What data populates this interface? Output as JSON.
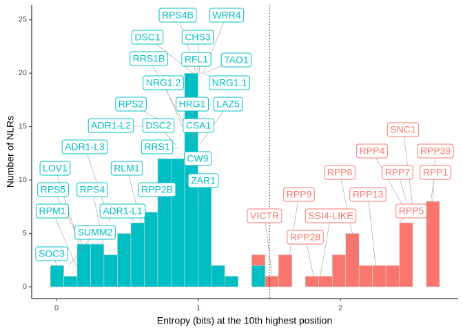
{
  "chart_data": {
    "type": "histogram",
    "x_label": "Entropy (bits) at the 10th highest position",
    "y_label": "Number of NLRs",
    "bins": [
      -0.044,
      0.051,
      0.145,
      0.24,
      0.334,
      0.429,
      0.524,
      0.618,
      0.713,
      0.807,
      0.902,
      0.997,
      1.091,
      1.186,
      1.28,
      1.375,
      1.47,
      1.564,
      1.659,
      1.753,
      1.848,
      1.943,
      2.037,
      2.132,
      2.226,
      2.321,
      2.416,
      2.51,
      2.605,
      2.699
    ],
    "stacked": true,
    "series": [
      {
        "color": "#00BFC4",
        "values": [
          2,
          1,
          4,
          4,
          3,
          5,
          6,
          7,
          12,
          12,
          20,
          10,
          2,
          1,
          0,
          2,
          0,
          0,
          0,
          0,
          0,
          0,
          0,
          0,
          0,
          0,
          0,
          0,
          0
        ]
      },
      {
        "color": "#F8766D",
        "values": [
          0,
          0,
          0,
          0,
          0,
          0,
          0,
          0,
          0,
          0,
          0,
          0,
          0,
          0,
          0,
          1,
          1,
          3,
          0,
          1,
          1,
          3,
          5,
          2,
          2,
          2,
          6,
          0,
          8
        ]
      }
    ],
    "reference_line": 1.5,
    "xlim": [
      -0.175,
      2.83
    ],
    "ylim": [
      -1.1,
      26.4
    ],
    "xticks": [
      0,
      1,
      2
    ],
    "yticks": [
      0,
      5,
      10,
      15,
      20,
      25
    ],
    "grid": false,
    "annotations": [
      {
        "text": "RPS4B",
        "color": "#00BFC4"
      },
      {
        "text": "WRR4",
        "color": "#00BFC4"
      },
      {
        "text": "DSC1",
        "color": "#00BFC4"
      },
      {
        "text": "CHS3",
        "color": "#00BFC4"
      },
      {
        "text": "RRS1B",
        "color": "#00BFC4"
      },
      {
        "text": "RFL1",
        "color": "#00BFC4"
      },
      {
        "text": "TAO1",
        "color": "#00BFC4"
      },
      {
        "text": "NRG1.2",
        "color": "#00BFC4"
      },
      {
        "text": "NRG1.1",
        "color": "#00BFC4"
      },
      {
        "text": "RPS2",
        "color": "#00BFC4"
      },
      {
        "text": "HRG1",
        "color": "#00BFC4"
      },
      {
        "text": "LAZ5",
        "color": "#00BFC4"
      },
      {
        "text": "ADR1-L2",
        "color": "#00BFC4"
      },
      {
        "text": "DSC2",
        "color": "#00BFC4"
      },
      {
        "text": "CSA1",
        "color": "#00BFC4"
      },
      {
        "text": "ADR1-L3",
        "color": "#00BFC4"
      },
      {
        "text": "RRS1",
        "color": "#00BFC4"
      },
      {
        "text": "CW9",
        "color": "#00BFC4"
      },
      {
        "text": "LOV1",
        "color": "#00BFC4"
      },
      {
        "text": "RLM1",
        "color": "#00BFC4"
      },
      {
        "text": "RPS5",
        "color": "#00BFC4"
      },
      {
        "text": "RPS4",
        "color": "#00BFC4"
      },
      {
        "text": "RPP2B",
        "color": "#00BFC4"
      },
      {
        "text": "ZAR1",
        "color": "#00BFC4"
      },
      {
        "text": "RPM1",
        "color": "#00BFC4"
      },
      {
        "text": "ADR1-L1",
        "color": "#00BFC4"
      },
      {
        "text": "SUMM2",
        "color": "#00BFC4"
      },
      {
        "text": "SOC3",
        "color": "#00BFC4"
      },
      {
        "text": "SNC1",
        "color": "#F8766D"
      },
      {
        "text": "RPP4",
        "color": "#F8766D"
      },
      {
        "text": "RPP39",
        "color": "#F8766D"
      },
      {
        "text": "RPP8",
        "color": "#F8766D"
      },
      {
        "text": "RPP7",
        "color": "#F8766D"
      },
      {
        "text": "RPP1",
        "color": "#F8766D"
      },
      {
        "text": "RPP9",
        "color": "#F8766D"
      },
      {
        "text": "RPP13",
        "color": "#F8766D"
      },
      {
        "text": "VICTR",
        "color": "#F8766D"
      },
      {
        "text": "SSI4-LIKE",
        "color": "#F8766D"
      },
      {
        "text": "RPP5",
        "color": "#F8766D"
      },
      {
        "text": "RPP28",
        "color": "#F8766D"
      }
    ]
  }
}
